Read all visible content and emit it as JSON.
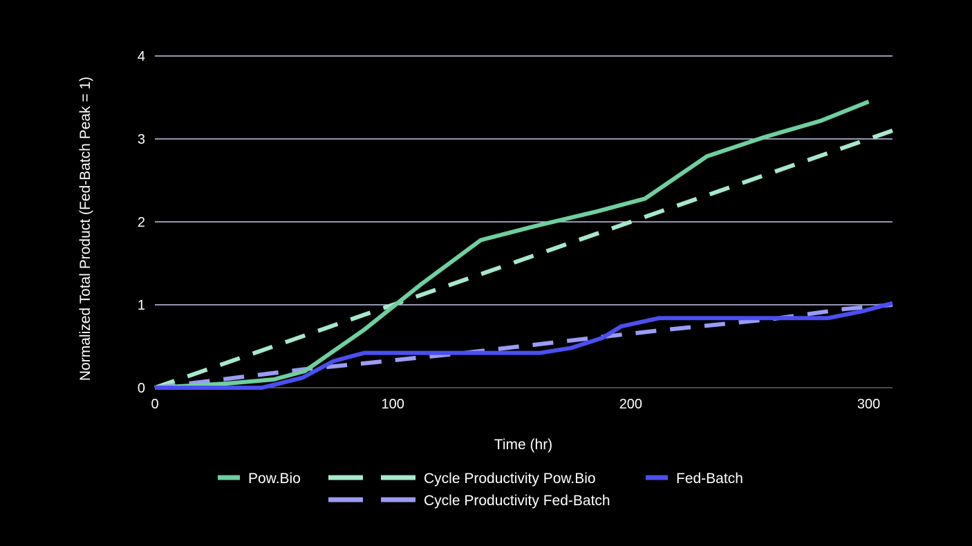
{
  "chart_data": {
    "type": "line",
    "title": "",
    "xlabel": "Time (hr)",
    "ylabel": "Normalized Total Product (Fed-Batch Peak = 1)",
    "xlim": [
      0,
      310
    ],
    "ylim": [
      0,
      4
    ],
    "x_ticks": [
      "0",
      "100",
      "200",
      "300"
    ],
    "y_ticks": [
      "0",
      "1",
      "2",
      "3",
      "4"
    ],
    "grid": "horizontal",
    "legend_position": "bottom",
    "series": [
      {
        "name": "Pow.Bio",
        "color": "#6fcf9f",
        "style": "solid",
        "points": [
          [
            0,
            0
          ],
          [
            30,
            0.05
          ],
          [
            50,
            0.1
          ],
          [
            63,
            0.2
          ],
          [
            88,
            0.7
          ],
          [
            112,
            1.25
          ],
          [
            137,
            1.78
          ],
          [
            160,
            1.95
          ],
          [
            185,
            2.12
          ],
          [
            206,
            2.28
          ],
          [
            232,
            2.79
          ],
          [
            256,
            3.02
          ],
          [
            280,
            3.22
          ],
          [
            300,
            3.45
          ]
        ]
      },
      {
        "name": "Cycle Productivity Pow.Bio",
        "color": "#a6e8cb",
        "style": "dashed",
        "points": [
          [
            0,
            0
          ],
          [
            310,
            3.1
          ]
        ]
      },
      {
        "name": "Fed-Batch",
        "color": "#4b4ff0",
        "style": "solid",
        "points": [
          [
            0,
            0
          ],
          [
            45,
            0
          ],
          [
            62,
            0.12
          ],
          [
            75,
            0.32
          ],
          [
            88,
            0.42
          ],
          [
            112,
            0.42
          ],
          [
            137,
            0.42
          ],
          [
            162,
            0.42
          ],
          [
            175,
            0.48
          ],
          [
            188,
            0.6
          ],
          [
            196,
            0.74
          ],
          [
            212,
            0.84
          ],
          [
            250,
            0.84
          ],
          [
            283,
            0.84
          ],
          [
            297,
            0.92
          ],
          [
            310,
            1.02
          ]
        ]
      },
      {
        "name": "Cycle Productivity Fed-Batch",
        "color": "#9b9cf5",
        "style": "dashed",
        "points": [
          [
            0,
            0
          ],
          [
            62,
            0.22
          ],
          [
            90,
            0.3
          ],
          [
            130,
            0.42
          ],
          [
            190,
            0.62
          ],
          [
            215,
            0.7
          ],
          [
            260,
            0.83
          ],
          [
            290,
            0.95
          ],
          [
            310,
            1.0
          ]
        ]
      }
    ]
  }
}
